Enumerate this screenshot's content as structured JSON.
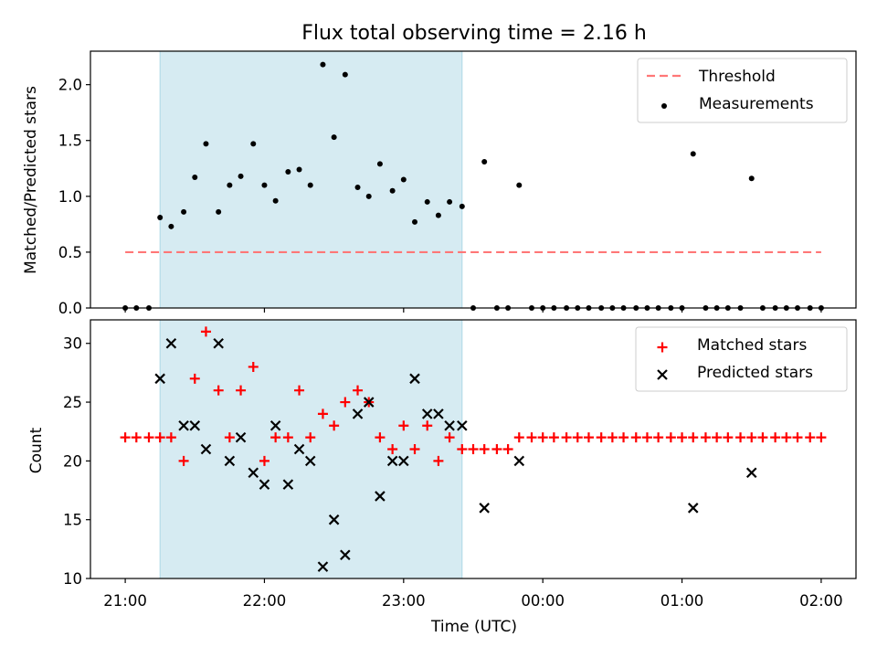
{
  "chart_data": [
    {
      "type": "scatter",
      "title": "Flux total observing time = 2.16 h",
      "xlabel": "",
      "ylabel": "Matched/Predicted stars",
      "x_axis": "time (hours, UTC; values >24 are after midnight)",
      "xlim": [
        20.75,
        26.25
      ],
      "ylim": [
        0,
        2.3
      ],
      "yticks": [
        "0.0",
        "0.5",
        "1.0",
        "1.5",
        "2.0"
      ],
      "highlight_span": {
        "start": 21.25,
        "end": 23.42,
        "color": "#add8e6"
      },
      "legend": {
        "position": "top-right",
        "entries": [
          "Threshold",
          "Measurements"
        ]
      },
      "series": [
        {
          "name": "Threshold",
          "kind": "dashed-line",
          "color": "#ff7777",
          "x": [
            21.0,
            26.0
          ],
          "y": [
            0.5,
            0.5
          ]
        },
        {
          "name": "Measurements",
          "kind": "dots",
          "color": "#000000",
          "x": [
            21.0,
            21.08,
            21.17,
            21.25,
            21.33,
            21.42,
            21.5,
            21.58,
            21.67,
            21.75,
            21.83,
            21.92,
            22.0,
            22.08,
            22.17,
            22.25,
            22.33,
            22.42,
            22.5,
            22.58,
            22.67,
            22.75,
            22.83,
            22.92,
            23.0,
            23.08,
            23.17,
            23.25,
            23.33,
            23.42,
            23.5,
            23.58,
            23.67,
            23.75,
            23.83,
            23.92,
            24.0,
            24.08,
            24.17,
            24.25,
            24.33,
            24.42,
            24.5,
            24.58,
            24.67,
            24.75,
            24.83,
            24.92,
            25.0,
            25.08,
            25.17,
            25.25,
            25.33,
            25.42,
            25.5,
            25.58,
            25.67,
            25.75,
            25.83,
            25.92,
            26.0
          ],
          "y": [
            0,
            0,
            0,
            0.81,
            0.73,
            0.86,
            1.17,
            1.47,
            0.86,
            1.1,
            1.18,
            1.47,
            1.1,
            0.96,
            1.22,
            1.24,
            1.1,
            2.18,
            1.53,
            2.09,
            1.08,
            1.0,
            1.29,
            1.05,
            1.15,
            0.77,
            0.95,
            0.83,
            0.95,
            0.91,
            0,
            1.31,
            0,
            0,
            1.1,
            0,
            0,
            0,
            0,
            0,
            0,
            0,
            0,
            0,
            0,
            0,
            0,
            0,
            0,
            1.38,
            0,
            0,
            0,
            0,
            1.16,
            0,
            0,
            0,
            0,
            0,
            0
          ]
        }
      ]
    },
    {
      "type": "scatter",
      "title": "",
      "xlabel": "Time (UTC)",
      "ylabel": "Count",
      "xlim": [
        20.75,
        26.25
      ],
      "ylim": [
        10,
        32
      ],
      "yticks": [
        "10",
        "15",
        "20",
        "25",
        "30"
      ],
      "xticks": [
        {
          "x": 21,
          "label": "21:00"
        },
        {
          "x": 22,
          "label": "22:00"
        },
        {
          "x": 23,
          "label": "23:00"
        },
        {
          "x": 24,
          "label": "00:00"
        },
        {
          "x": 25,
          "label": "01:00"
        },
        {
          "x": 26,
          "label": "02:00"
        }
      ],
      "highlight_span": {
        "start": 21.25,
        "end": 23.42,
        "color": "#add8e6"
      },
      "legend": {
        "position": "top-right",
        "entries": [
          "Matched stars",
          "Predicted stars"
        ]
      },
      "series": [
        {
          "name": "Matched stars",
          "kind": "plus",
          "color": "#ff0000",
          "x": [
            21.0,
            21.08,
            21.17,
            21.25,
            21.33,
            21.42,
            21.5,
            21.58,
            21.67,
            21.75,
            21.83,
            21.92,
            22.0,
            22.08,
            22.17,
            22.25,
            22.33,
            22.42,
            22.5,
            22.58,
            22.67,
            22.75,
            22.83,
            22.92,
            23.0,
            23.08,
            23.17,
            23.25,
            23.33,
            23.42,
            23.5,
            23.58,
            23.67,
            23.75,
            23.83,
            23.92,
            24.0,
            24.08,
            24.17,
            24.25,
            24.33,
            24.42,
            24.5,
            24.58,
            24.67,
            24.75,
            24.83,
            24.92,
            25.0,
            25.08,
            25.17,
            25.25,
            25.33,
            25.42,
            25.5,
            25.58,
            25.67,
            25.75,
            25.83,
            25.92,
            26.0
          ],
          "y": [
            22,
            22,
            22,
            22,
            22,
            20,
            27,
            31,
            26,
            22,
            26,
            28,
            20,
            22,
            22,
            26,
            22,
            24,
            23,
            25,
            26,
            25,
            22,
            21,
            23,
            21,
            23,
            20,
            22,
            21,
            21,
            21,
            21,
            21,
            22,
            22,
            22,
            22,
            22,
            22,
            22,
            22,
            22,
            22,
            22,
            22,
            22,
            22,
            22,
            22,
            22,
            22,
            22,
            22,
            22,
            22,
            22,
            22,
            22,
            22,
            22
          ]
        },
        {
          "name": "Predicted stars",
          "kind": "x",
          "color": "#000000",
          "x": [
            21.25,
            21.33,
            21.42,
            21.5,
            21.58,
            21.67,
            21.75,
            21.83,
            21.92,
            22.0,
            22.08,
            22.17,
            22.25,
            22.33,
            22.42,
            22.5,
            22.58,
            22.67,
            22.75,
            22.83,
            22.92,
            23.0,
            23.08,
            23.17,
            23.25,
            23.33,
            23.42,
            23.58,
            23.83,
            25.08,
            25.5
          ],
          "y": [
            27,
            30,
            23,
            23,
            21,
            30,
            20,
            22,
            19,
            18,
            23,
            18,
            21,
            20,
            11,
            15,
            12,
            24,
            25,
            17,
            20,
            20,
            27,
            24,
            24,
            23,
            23,
            16,
            20,
            16,
            19
          ]
        }
      ]
    }
  ]
}
